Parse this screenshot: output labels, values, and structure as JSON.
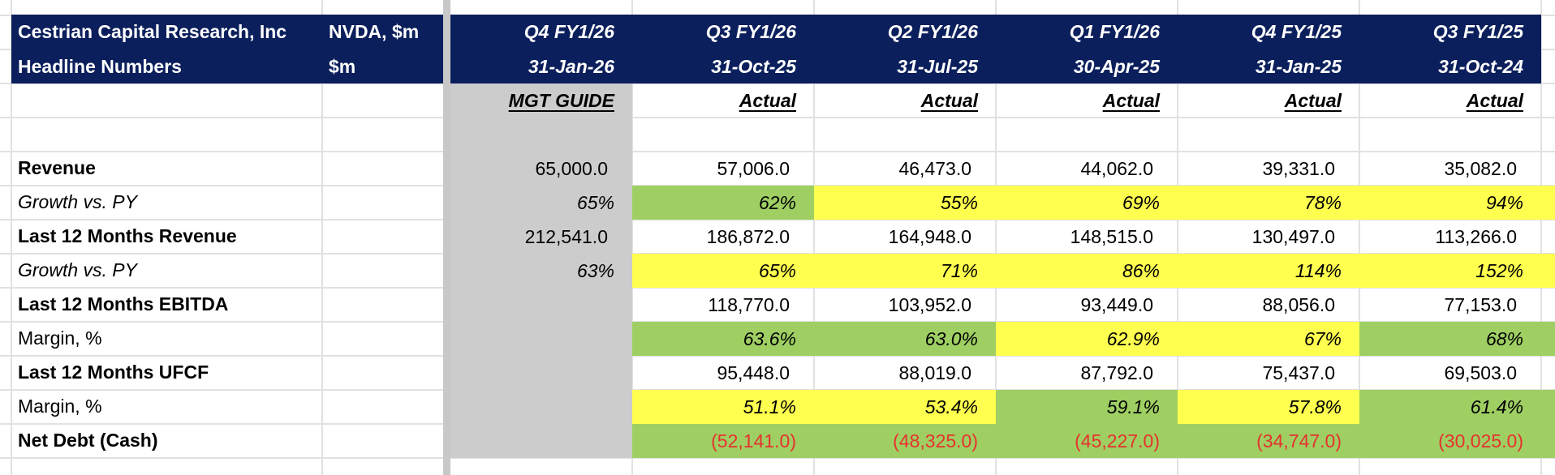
{
  "header": {
    "title_line1": "Cestrian Capital Research, Inc",
    "title_line2": "Headline Numbers",
    "ticker_line1": "NVDA, $m",
    "ticker_line2": "$m"
  },
  "columns": [
    {
      "period": "Q4 FY1/26",
      "date": "31-Jan-26",
      "type": "MGT GUIDE"
    },
    {
      "period": "Q3 FY1/26",
      "date": "31-Oct-25",
      "type": "Actual"
    },
    {
      "period": "Q2 FY1/26",
      "date": "31-Jul-25",
      "type": "Actual"
    },
    {
      "period": "Q1 FY1/26",
      "date": "30-Apr-25",
      "type": "Actual"
    },
    {
      "period": "Q4 FY1/25",
      "date": "31-Jan-25",
      "type": "Actual"
    },
    {
      "period": "Q3 FY1/25",
      "date": "31-Oct-24",
      "type": "Actual"
    }
  ],
  "rows": [
    {
      "label": "Revenue",
      "style": "bold",
      "values": [
        "65,000.0",
        "57,006.0",
        "46,473.0",
        "44,062.0",
        "39,331.0",
        "35,082.0"
      ],
      "fills": [
        "guide",
        "",
        "",
        "",
        "",
        ""
      ]
    },
    {
      "label": "Growth vs. PY",
      "style": "italic",
      "values": [
        "65%",
        "62%",
        "55%",
        "69%",
        "78%",
        "94%"
      ],
      "fills": [
        "guide",
        "green",
        "yellow",
        "yellow",
        "yellow",
        "yellow"
      ]
    },
    {
      "label": "Last 12 Months Revenue",
      "style": "bold",
      "values": [
        "212,541.0",
        "186,872.0",
        "164,948.0",
        "148,515.0",
        "130,497.0",
        "113,266.0"
      ],
      "fills": [
        "guide",
        "",
        "",
        "",
        "",
        ""
      ]
    },
    {
      "label": "Growth vs. PY",
      "style": "italic",
      "values": [
        "63%",
        "65%",
        "71%",
        "86%",
        "114%",
        "152%"
      ],
      "fills": [
        "guide",
        "yellow",
        "yellow",
        "yellow",
        "yellow",
        "yellow"
      ]
    },
    {
      "label": "Last 12 Months EBITDA",
      "style": "bold",
      "values": [
        "",
        "118,770.0",
        "103,952.0",
        "93,449.0",
        "88,056.0",
        "77,153.0"
      ],
      "fills": [
        "guide",
        "",
        "",
        "",
        "",
        ""
      ]
    },
    {
      "label": "Margin, %",
      "style": "normal",
      "values": [
        "",
        "63.6%",
        "63.0%",
        "62.9%",
        "67%",
        "68%"
      ],
      "fills": [
        "guide",
        "green",
        "green",
        "yellow",
        "yellow",
        "green"
      ]
    },
    {
      "label": "Last 12 Months UFCF",
      "style": "bold",
      "values": [
        "",
        "95,448.0",
        "88,019.0",
        "87,792.0",
        "75,437.0",
        "69,503.0"
      ],
      "fills": [
        "guide",
        "",
        "",
        "",
        "",
        ""
      ]
    },
    {
      "label": "Margin, %",
      "style": "normal",
      "values": [
        "",
        "51.1%",
        "53.4%",
        "59.1%",
        "57.8%",
        "61.4%"
      ],
      "fills": [
        "guide",
        "yellow",
        "yellow",
        "green",
        "yellow",
        "green"
      ]
    },
    {
      "label": "Net Debt (Cash)",
      "style": "bold",
      "values": [
        "",
        "(52,141.0)",
        "(48,325.0)",
        "(45,227.0)",
        "(34,747.0)",
        "(30,025.0)"
      ],
      "fills": [
        "guide",
        "green",
        "green",
        "green",
        "green",
        "green"
      ]
    }
  ],
  "colors": {
    "header_navy": "#0b1f5c",
    "guide_gray": "#cccccc",
    "good_green": "#9fcf63",
    "warn_yellow": "#ffff4f",
    "negative_red": "#e5322d"
  }
}
